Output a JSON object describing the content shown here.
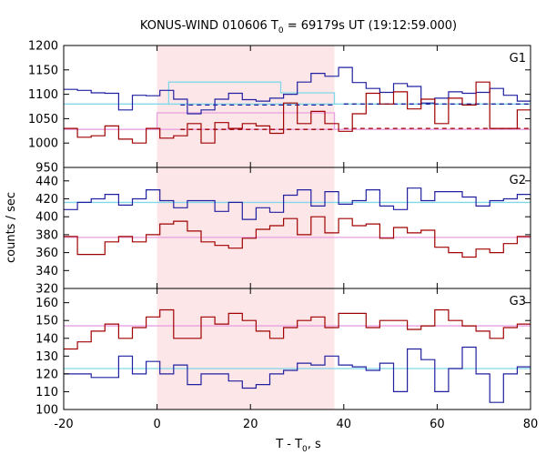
{
  "chart_data": {
    "type": "line",
    "title": "KONUS-WIND 010606 T",
    "title_sub": "0",
    "title_tail": " = 69179s UT (19:12:59.000)",
    "xlabel": "T - T",
    "xlabel_sub": "0",
    "xlabel_tail": ", s",
    "ylabel": "counts / sec",
    "xlim": [
      -20,
      80
    ],
    "x_ticks": [
      -20,
      0,
      20,
      40,
      60,
      80
    ],
    "shaded_interval": [
      0,
      38
    ],
    "colors": {
      "blue": "#2020a0",
      "red": "#a00000",
      "cyan": "#80d8e8",
      "pink": "#e8a0e0",
      "shade": "#fde6e8"
    },
    "panels": [
      {
        "label": "G1",
        "ylim": [
          950,
          1200
        ],
        "y_ticks": [
          950,
          1000,
          1050,
          1100,
          1150,
          1200
        ],
        "bin_width": 2.944,
        "x_start": -20,
        "series": [
          {
            "color": "blue",
            "values": [
              1110,
              1108,
              1103,
              1102,
              1068,
              1098,
              1097,
              1108,
              1090,
              1060,
              1068,
              1090,
              1102,
              1089,
              1086,
              1092,
              1100,
              1125,
              1143,
              1137,
              1155,
              1124,
              1112,
              1104,
              1122,
              1116,
              1082,
              1092,
              1105,
              1102,
              1104,
              1112,
              1098,
              1086,
              1090,
              1103,
              1094,
              1092,
              1086,
              1080,
              1092,
              1100,
              1098,
              1094,
              1102,
              1092,
              1098,
              1098,
              1086,
              1085,
              1090,
              1100,
              1096,
              1093,
              1106,
              1100
            ]
          },
          {
            "color": "red",
            "values": [
              1030,
              1012,
              1015,
              1035,
              1008,
              1000,
              1030,
              1010,
              1015,
              1040,
              1000,
              1042,
              1030,
              1040,
              1035,
              1020,
              1082,
              1040,
              1065,
              1040,
              1024,
              1060,
              1102,
              1080,
              1105,
              1070,
              1090,
              1040,
              1092,
              1078,
              1125,
              1030,
              1030,
              1068,
              1048,
              1075,
              1040,
              1000,
              1032,
              1030,
              1030,
              1035,
              1015,
              1000,
              1010,
              1015,
              1018,
              1030,
              1045,
              1025,
              1040,
              1025,
              1035,
              1010,
              1025,
              1030
            ]
          }
        ],
        "bg_lines": [
          {
            "color": "cyan",
            "value": 1080,
            "from": -20,
            "to": 80
          },
          {
            "color": "pink",
            "value": 1028,
            "from": -20,
            "to": 80
          }
        ],
        "dashed_lines": [
          {
            "color": "blue",
            "value": 1080,
            "from": 40,
            "to": 80
          },
          {
            "color": "red",
            "value": 1030,
            "from": 40,
            "to": 80
          },
          {
            "color": "blue",
            "value": 1078,
            "from": 5,
            "to": 38
          },
          {
            "color": "red",
            "value": 1028,
            "from": 5,
            "to": 38
          }
        ],
        "model_steps": [
          {
            "color": "cyan",
            "points": [
              [
                2.5,
                1080
              ],
              [
                2.5,
                1125
              ],
              [
                26.5,
                1125
              ],
              [
                26.5,
                1103
              ],
              [
                38,
                1103
              ],
              [
                38,
                1080
              ]
            ]
          },
          {
            "color": "pink",
            "points": [
              [
                0,
                1028
              ],
              [
                0,
                1062
              ],
              [
                38,
                1062
              ],
              [
                38,
                1028
              ]
            ]
          }
        ]
      },
      {
        "label": "G2",
        "ylim": [
          320,
          455
        ],
        "y_ticks": [
          320,
          340,
          360,
          380,
          400,
          420,
          440
        ],
        "bin_width": 2.944,
        "x_start": -20,
        "series": [
          {
            "color": "blue",
            "values": [
              408,
              416,
              420,
              425,
              413,
              420,
              430,
              418,
              410,
              418,
              418,
              406,
              416,
              397,
              410,
              405,
              424,
              430,
              412,
              428,
              414,
              418,
              430,
              412,
              408,
              432,
              418,
              428,
              428,
              422,
              412,
              418,
              420,
              425,
              432,
              410,
              408,
              410,
              430,
              412,
              410,
              412,
              432,
              420,
              428,
              426,
              412,
              402,
              410,
              418,
              405,
              422,
              415,
              418,
              405,
              404
            ]
          },
          {
            "color": "red",
            "values": [
              378,
              358,
              358,
              372,
              378,
              372,
              380,
              392,
              395,
              384,
              372,
              368,
              365,
              376,
              386,
              390,
              398,
              380,
              400,
              382,
              398,
              390,
              392,
              376,
              388,
              382,
              385,
              366,
              360,
              355,
              364,
              360,
              370,
              378,
              368,
              375,
              395,
              375,
              385,
              378,
              370,
              376,
              380,
              386,
              388,
              375,
              368,
              372,
              350,
              378,
              376,
              378,
              380,
              376,
              380,
              382
            ]
          }
        ],
        "bg_lines": [
          {
            "color": "cyan",
            "value": 416,
            "from": -20,
            "to": 80
          },
          {
            "color": "pink",
            "value": 377,
            "from": -20,
            "to": 80
          }
        ],
        "dashed_lines": [],
        "model_steps": []
      },
      {
        "label": "G3",
        "ylim": [
          100,
          168
        ],
        "y_ticks": [
          100,
          110,
          120,
          130,
          140,
          150,
          160
        ],
        "bin_width": 2.944,
        "x_start": -20,
        "series": [
          {
            "color": "blue",
            "values": [
              120,
              120,
              118,
              118,
              130,
              120,
              127,
              120,
              125,
              114,
              120,
              120,
              116,
              112,
              114,
              120,
              122,
              126,
              125,
              130,
              125,
              124,
              122,
              126,
              110,
              134,
              128,
              110,
              123,
              135,
              120,
              104,
              120,
              124,
              135,
              110,
              108,
              102,
              110,
              122,
              118,
              120,
              120,
              112,
              108,
              122,
              118,
              126,
              120,
              130,
              120,
              124,
              122,
              128,
              128,
              126
            ]
          },
          {
            "color": "red",
            "values": [
              134,
              138,
              144,
              148,
              140,
              146,
              152,
              156,
              140,
              140,
              152,
              148,
              154,
              150,
              144,
              140,
              146,
              150,
              152,
              146,
              154,
              154,
              146,
              150,
              150,
              145,
              147,
              156,
              150,
              147,
              144,
              140,
              146,
              148,
              145,
              140,
              146,
              146,
              148,
              150,
              142,
              146,
              144,
              144,
              142,
              146,
              142,
              152,
              148,
              145,
              146,
              154,
              143,
              148,
              154,
              155
            ]
          }
        ],
        "bg_lines": [
          {
            "color": "cyan",
            "value": 123,
            "from": -20,
            "to": 80
          },
          {
            "color": "pink",
            "value": 147,
            "from": -20,
            "to": 80
          }
        ],
        "dashed_lines": [],
        "model_steps": []
      }
    ]
  }
}
